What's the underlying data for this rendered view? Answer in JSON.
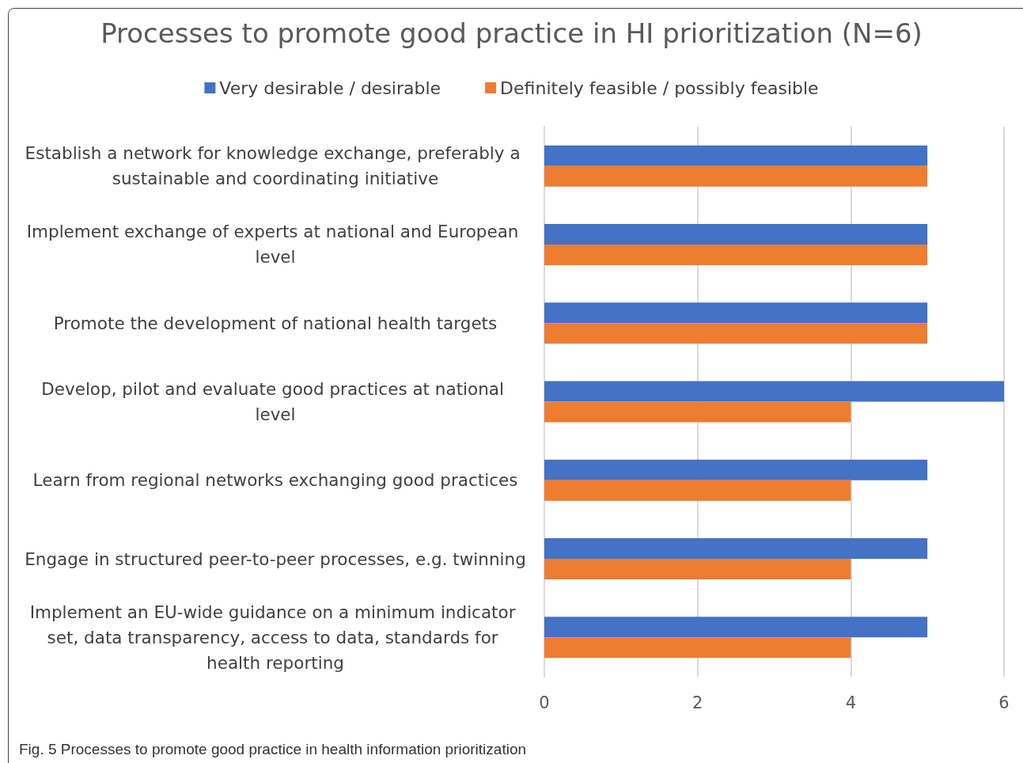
{
  "chart_data": {
    "type": "bar",
    "orientation": "horizontal",
    "title": "Processes to promote good practice in HI prioritization (N=6)",
    "categories": [
      "Establish a network for knowledge exchange, preferably a sustainable and coordinating initiative",
      "Implement exchange of experts at national and European level",
      "Promote the development of national health targets",
      "Develop, pilot and evaluate good practices at national level",
      "Learn from regional networks exchanging good practices",
      "Engage in structured peer-to-peer processes, e.g. twinning",
      "Implement an EU-wide guidance on a minimum indicator set, data transparency, access to data, standards for health reporting"
    ],
    "series": [
      {
        "name": "Very desirable / desirable",
        "color": "#4472c4",
        "values": [
          5,
          5,
          5,
          6,
          5,
          5,
          5
        ]
      },
      {
        "name": "Definitely feasible / possibly feasible",
        "color": "#ed7d31",
        "values": [
          5,
          5,
          5,
          4,
          4,
          4,
          4
        ]
      }
    ],
    "xlim": [
      0,
      6
    ],
    "xticks": [
      0,
      2,
      4,
      6
    ],
    "grid": "x",
    "legend": "top",
    "annotations": [
      "Fig. 5 Processes to promote good practice in health information prioritization"
    ]
  }
}
